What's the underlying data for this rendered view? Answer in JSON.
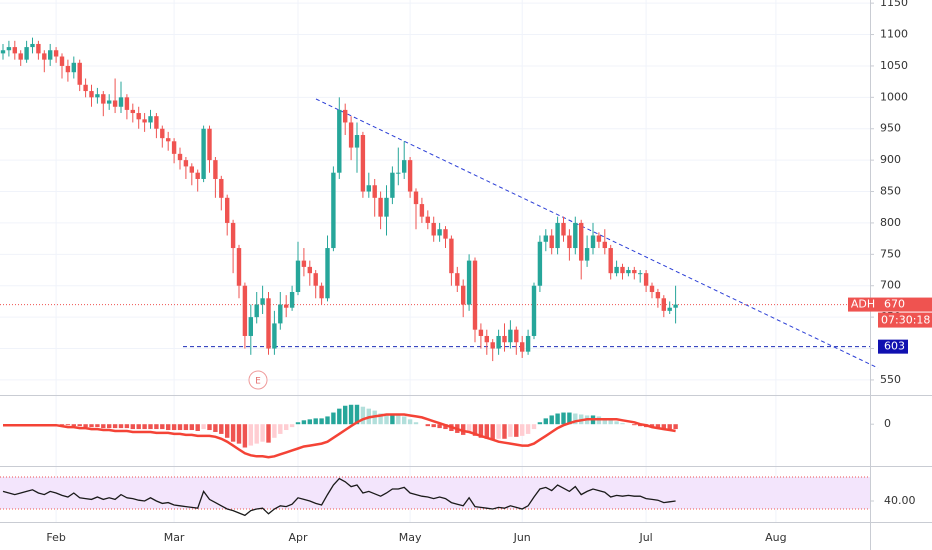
{
  "chart_data": {
    "type": "candlestick",
    "categories": [
      null,
      null,
      null,
      null,
      null,
      null,
      null,
      null,
      null,
      "Feb",
      null,
      null,
      null,
      null,
      null,
      null,
      null,
      null,
      null,
      null,
      null,
      null,
      null,
      null,
      null,
      null,
      null,
      null,
      null,
      "Mar",
      null,
      null,
      null,
      null,
      null,
      null,
      null,
      null,
      null,
      null,
      null,
      null,
      null,
      null,
      null,
      null,
      null,
      null,
      null,
      null,
      "Apr",
      null,
      null,
      null,
      null,
      null,
      null,
      null,
      null,
      null,
      null,
      null,
      null,
      null,
      null,
      null,
      null,
      null,
      null,
      "May",
      null,
      null,
      null,
      null,
      null,
      null,
      null,
      null,
      null,
      null,
      null,
      null,
      null,
      null,
      null,
      null,
      null,
      null,
      "Jun",
      null,
      null,
      null,
      null,
      null,
      null,
      null,
      null,
      null,
      null,
      null,
      null,
      null,
      null,
      null,
      null,
      null,
      null,
      null,
      null,
      "Jul",
      null,
      null,
      null,
      null,
      null,
      null,
      null,
      null,
      null,
      null,
      null,
      null,
      null,
      null,
      null,
      null,
      null,
      null,
      null,
      null,
      null,
      "Aug"
    ],
    "open": [
      1070,
      1075,
      1080,
      1070,
      1060,
      1080,
      1085,
      1070,
      1060,
      1075,
      1065,
      1050,
      1040,
      1055,
      1020,
      1010,
      1000,
      1005,
      990,
      995,
      985,
      1000,
      980,
      975,
      965,
      960,
      970,
      950,
      935,
      930,
      910,
      900,
      890,
      880,
      870,
      950,
      900,
      870,
      840,
      800,
      760,
      700,
      620,
      650,
      670,
      680,
      600,
      640,
      670,
      665,
      690,
      740,
      730,
      720,
      700,
      680,
      760,
      880,
      980,
      960,
      920,
      940,
      850,
      860,
      840,
      810,
      840,
      880,
      880,
      900,
      850,
      830,
      810,
      800,
      780,
      790,
      775,
      720,
      700,
      670,
      740,
      630,
      620,
      610,
      600,
      620,
      610,
      630,
      610,
      595,
      620,
      700,
      770,
      780,
      760,
      800,
      780,
      760,
      800,
      740,
      760,
      780,
      770,
      760,
      720,
      730,
      720,
      725,
      720,
      720,
      700,
      690,
      680,
      660,
      665,
      null,
      null,
      null,
      null,
      null,
      null,
      null,
      null,
      null,
      null,
      null,
      null,
      null,
      null,
      null,
      null,
      null
    ],
    "high": [
      1085,
      1090,
      1090,
      1075,
      1090,
      1095,
      1090,
      1075,
      1085,
      1080,
      1070,
      1060,
      1065,
      1060,
      1030,
      1020,
      1015,
      1010,
      1005,
      1030,
      1025,
      1005,
      990,
      985,
      975,
      980,
      975,
      955,
      945,
      935,
      920,
      905,
      895,
      885,
      955,
      955,
      905,
      875,
      845,
      805,
      765,
      705,
      670,
      690,
      700,
      690,
      660,
      690,
      685,
      700,
      770,
      760,
      740,
      725,
      705,
      780,
      890,
      1000,
      990,
      970,
      960,
      945,
      880,
      870,
      850,
      860,
      890,
      920,
      930,
      905,
      855,
      840,
      820,
      810,
      800,
      795,
      780,
      730,
      710,
      750,
      745,
      640,
      630,
      615,
      630,
      640,
      645,
      635,
      620,
      630,
      705,
      780,
      790,
      790,
      810,
      810,
      790,
      810,
      805,
      780,
      800,
      785,
      790,
      765,
      740,
      735,
      730,
      730,
      725,
      725,
      705,
      695,
      685,
      675,
      700,
      null,
      null,
      null,
      null,
      null,
      null,
      null,
      null,
      null,
      null,
      null,
      null,
      null,
      null,
      null,
      null,
      null
    ],
    "low": [
      1060,
      1065,
      1060,
      1050,
      1055,
      1070,
      1060,
      1040,
      1050,
      1055,
      1030,
      1025,
      1030,
      1010,
      1000,
      985,
      990,
      970,
      980,
      975,
      975,
      965,
      960,
      950,
      945,
      950,
      935,
      920,
      915,
      895,
      885,
      870,
      860,
      850,
      865,
      880,
      840,
      820,
      780,
      720,
      680,
      600,
      590,
      640,
      655,
      590,
      590,
      630,
      650,
      660,
      685,
      715,
      700,
      680,
      670,
      675,
      755,
      870,
      940,
      900,
      880,
      840,
      840,
      810,
      790,
      780,
      830,
      860,
      870,
      840,
      790,
      800,
      790,
      770,
      770,
      760,
      700,
      690,
      650,
      660,
      610,
      600,
      590,
      580,
      590,
      595,
      600,
      590,
      585,
      590,
      615,
      690,
      755,
      750,
      750,
      770,
      740,
      750,
      710,
      730,
      750,
      760,
      750,
      710,
      715,
      710,
      715,
      710,
      705,
      690,
      680,
      665,
      650,
      655,
      640,
      null,
      null,
      null,
      null,
      null,
      null,
      null,
      null,
      null,
      null,
      null,
      null,
      null,
      null,
      null,
      null,
      null
    ],
    "close": [
      1075,
      1080,
      1070,
      1060,
      1080,
      1085,
      1070,
      1060,
      1075,
      1065,
      1050,
      1040,
      1055,
      1020,
      1010,
      1000,
      1005,
      990,
      995,
      985,
      1000,
      980,
      975,
      965,
      960,
      970,
      950,
      935,
      930,
      910,
      900,
      890,
      880,
      870,
      950,
      900,
      870,
      840,
      800,
      760,
      700,
      620,
      650,
      670,
      680,
      600,
      640,
      670,
      665,
      690,
      740,
      730,
      720,
      700,
      680,
      760,
      880,
      980,
      960,
      920,
      940,
      850,
      860,
      840,
      810,
      840,
      880,
      880,
      900,
      850,
      830,
      810,
      800,
      780,
      790,
      775,
      720,
      700,
      670,
      740,
      630,
      620,
      610,
      600,
      620,
      610,
      630,
      610,
      595,
      620,
      700,
      770,
      780,
      760,
      800,
      780,
      760,
      800,
      740,
      760,
      780,
      770,
      760,
      720,
      730,
      720,
      725,
      720,
      720,
      700,
      690,
      680,
      660,
      665,
      670,
      null,
      null,
      null,
      null,
      null,
      null,
      null,
      null,
      null,
      null,
      null,
      null,
      null,
      null,
      null,
      null,
      null
    ],
    "up_color": "#26a69a",
    "down_color": "#ef5350",
    "ylim": [
      526,
      1155
    ],
    "yticks": [
      550,
      600,
      650,
      700,
      750,
      800,
      850,
      900,
      950,
      1000,
      1050,
      1100,
      1150
    ],
    "grid": true,
    "last_price": {
      "symbol": "ADH",
      "value": 670,
      "countdown": "07:30:18"
    },
    "support": 603,
    "earnings_marker": "E",
    "indicators": [
      {
        "type": "macd",
        "ylim": [
          -42,
          28
        ],
        "yticks": [
          0
        ],
        "histogram_colors": [
          "#26a69a",
          "#b2dfdb",
          "#ef5350",
          "#ffcdd2"
        ],
        "histogram": [
          0,
          0,
          0,
          -1,
          -1,
          -1,
          -1,
          -1,
          0,
          0,
          -1,
          -1,
          -2,
          -2,
          -3,
          -3,
          -3,
          -4,
          -4,
          -4,
          -4,
          -4,
          -5,
          -5,
          -5,
          -5,
          -5,
          -5,
          -6,
          -6,
          -6,
          -6,
          -6,
          -7,
          -5,
          -6,
          -8,
          -10,
          -14,
          -18,
          -20,
          -24,
          -22,
          -20,
          -18,
          -19,
          -14,
          -10,
          -6,
          -3,
          2,
          4,
          5,
          6,
          6,
          8,
          12,
          16,
          19,
          20,
          20,
          18,
          16,
          14,
          11,
          10,
          10,
          9,
          8,
          5,
          2,
          0,
          -2,
          -3,
          -4,
          -5,
          -7,
          -9,
          -11,
          -8,
          -12,
          -14,
          -15,
          -16,
          -15,
          -15,
          -13,
          -13,
          -12,
          -10,
          -5,
          2,
          6,
          9,
          11,
          12,
          12,
          11,
          10,
          9,
          9,
          8,
          6,
          4,
          3,
          1,
          0,
          -1,
          -2,
          -3,
          -3,
          -4,
          -5,
          -5,
          -5,
          null,
          null,
          null,
          null,
          null,
          null,
          null,
          null,
          null,
          null,
          null,
          null,
          null,
          null,
          null,
          null,
          null
        ],
        "line_color": "#f44336",
        "line": [
          -1,
          -1,
          -1,
          -1,
          -1,
          -1,
          -1,
          -1,
          -1,
          -1,
          -2,
          -3,
          -3,
          -4,
          -4,
          -5,
          -5,
          -6,
          -6,
          -7,
          -7,
          -7,
          -8,
          -8,
          -8,
          -8,
          -9,
          -9,
          -9,
          -10,
          -10,
          -11,
          -11,
          -12,
          -12,
          -12,
          -13,
          -15,
          -18,
          -22,
          -26,
          -30,
          -32,
          -33,
          -33,
          -34,
          -33,
          -31,
          -29,
          -27,
          -25,
          -23,
          -22,
          -21,
          -20,
          -18,
          -14,
          -10,
          -6,
          -2,
          2,
          5,
          7,
          8,
          9,
          10,
          10,
          10,
          10,
          9,
          8,
          7,
          5,
          3,
          1,
          -1,
          -3,
          -5,
          -7,
          -8,
          -10,
          -12,
          -14,
          -16,
          -18,
          -19,
          -20,
          -21,
          -22,
          -22,
          -20,
          -16,
          -12,
          -8,
          -4,
          -1,
          1,
          3,
          4,
          5,
          5,
          5,
          5,
          5,
          5,
          4,
          3,
          2,
          0,
          -1,
          -3,
          -4,
          -5,
          -6,
          -7,
          null,
          null,
          null,
          null,
          null,
          null,
          null,
          null,
          null,
          null,
          null,
          null,
          null,
          null,
          null,
          null,
          null
        ]
      },
      {
        "type": "rsi",
        "ylim": [
          15,
          80
        ],
        "yticks": [
          {
            "value": 40,
            "label": "40.00"
          }
        ],
        "bands": [
          30,
          70
        ],
        "band_color": "#f3e5fc",
        "band_line_color": "#ef5350",
        "line_color": "#1a1a1a",
        "line": [
          52,
          50,
          48,
          50,
          52,
          54,
          50,
          48,
          52,
          50,
          47,
          45,
          50,
          44,
          43,
          42,
          45,
          42,
          44,
          42,
          48,
          44,
          43,
          41,
          40,
          44,
          40,
          37,
          38,
          35,
          34,
          33,
          32,
          31,
          52,
          42,
          38,
          34,
          30,
          28,
          25,
          22,
          28,
          30,
          31,
          24,
          30,
          34,
          33,
          36,
          44,
          42,
          40,
          37,
          35,
          48,
          60,
          68,
          64,
          58,
          60,
          50,
          52,
          49,
          46,
          50,
          55,
          55,
          57,
          50,
          48,
          46,
          45,
          43,
          45,
          43,
          38,
          36,
          34,
          44,
          33,
          32,
          31,
          30,
          32,
          31,
          34,
          32,
          30,
          34,
          45,
          55,
          57,
          53,
          60,
          56,
          52,
          58,
          48,
          52,
          55,
          53,
          51,
          45,
          47,
          46,
          47,
          46,
          46,
          43,
          42,
          41,
          38,
          39,
          40,
          null,
          null,
          null,
          null,
          null,
          null,
          null,
          null,
          null,
          null,
          null,
          null,
          null,
          null,
          null,
          null,
          null
        ]
      }
    ]
  }
}
